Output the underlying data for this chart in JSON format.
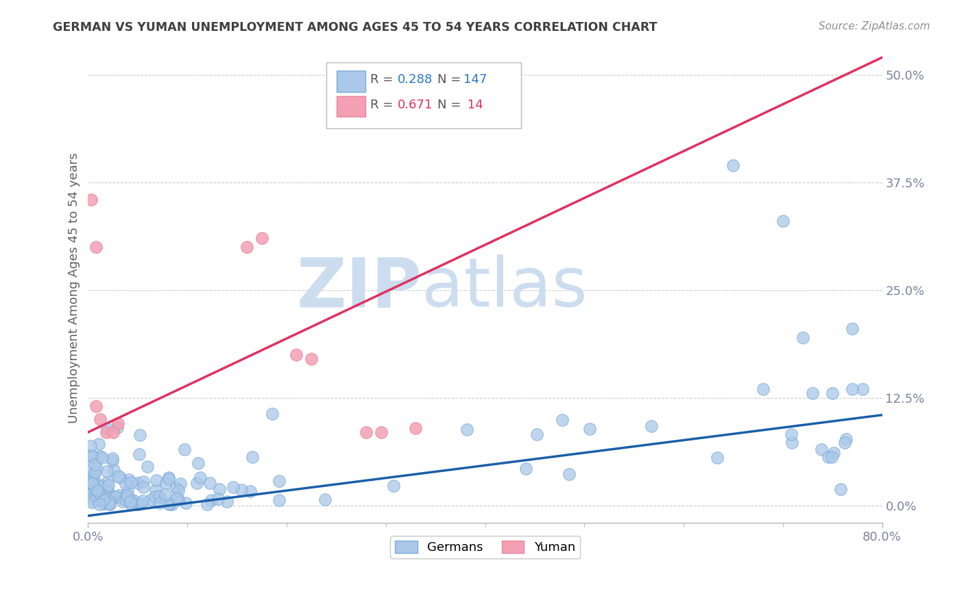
{
  "title": "GERMAN VS YUMAN UNEMPLOYMENT AMONG AGES 45 TO 54 YEARS CORRELATION CHART",
  "source": "Source: ZipAtlas.com",
  "ylabel": "Unemployment Among Ages 45 to 54 years",
  "xlim": [
    0.0,
    0.8
  ],
  "ylim": [
    -0.02,
    0.525
  ],
  "xlabel_major_ticks": [
    0.0,
    0.8
  ],
  "xlabel_major_labels": [
    "0.0%",
    "80.0%"
  ],
  "xlabel_minor_ticks": [
    0.1,
    0.2,
    0.3,
    0.4,
    0.5,
    0.6,
    0.7
  ],
  "ylabel_ticks": [
    0.0,
    0.125,
    0.25,
    0.375,
    0.5
  ],
  "ylabel_labels": [
    "0.0%",
    "12.5%",
    "25.0%",
    "37.5%",
    "50.0%"
  ],
  "blue_color": "#aac8e8",
  "pink_color": "#f4a0b4",
  "blue_line_color": "#1a5fa8",
  "pink_line_color": "#e03060",
  "blue_line_x": [
    0.0,
    0.8
  ],
  "blue_line_y": [
    -0.012,
    0.105
  ],
  "pink_line_x": [
    0.0,
    0.8
  ],
  "pink_line_y": [
    0.085,
    0.52
  ],
  "watermark_zip": "ZIP",
  "watermark_atlas": "atlas",
  "watermark_color": "#ccddf0",
  "background_color": "#ffffff",
  "grid_color": "#cccccc",
  "title_color": "#404040",
  "axis_label_color": "#606060",
  "tick_color": "#8080a0",
  "source_color": "#909090",
  "legend_R_color_blue": "#2878c8",
  "legend_N_color_blue": "#2878c8",
  "legend_R_color_pink": "#e03060",
  "legend_N_color_pink": "#e03060",
  "legend_blue_R": "0.288",
  "legend_blue_N": "147",
  "legend_pink_R": "0.671",
  "legend_pink_N": " 14"
}
